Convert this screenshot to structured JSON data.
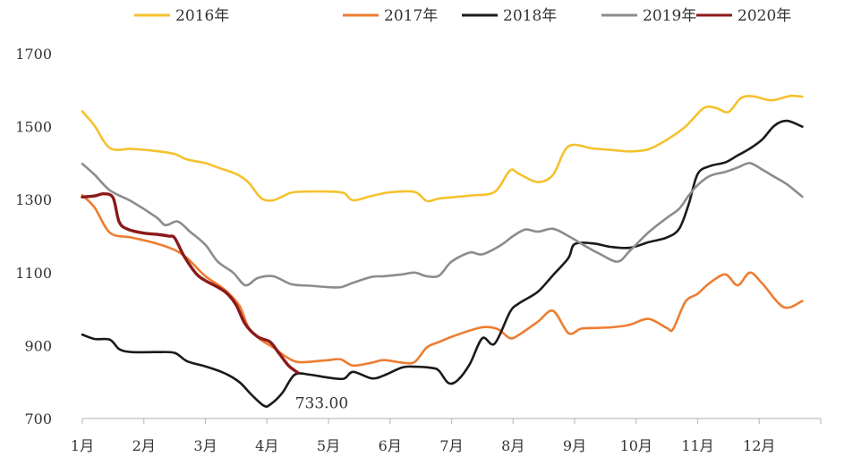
{
  "chart_data": {
    "type": "line",
    "title": "",
    "xlabel": "",
    "ylabel": "",
    "x_categories": [
      "1月",
      "2月",
      "3月",
      "4月",
      "5月",
      "6月",
      "7月",
      "8月",
      "9月",
      "10月",
      "11月",
      "12月"
    ],
    "ylim": [
      700,
      1700
    ],
    "yticks": [
      700,
      900,
      1100,
      1300,
      1500,
      1700
    ],
    "grid": false,
    "legend_position": "top",
    "series": [
      {
        "name": "2016年",
        "color": "#F5C12E",
        "points": [
          [
            0,
            1542
          ],
          [
            0.2,
            1502
          ],
          [
            0.45,
            1441
          ],
          [
            0.8,
            1439
          ],
          [
            1.2,
            1433
          ],
          [
            1.5,
            1425
          ],
          [
            1.7,
            1410
          ],
          [
            2.0,
            1400
          ],
          [
            2.2,
            1388
          ],
          [
            2.5,
            1370
          ],
          [
            2.7,
            1347
          ],
          [
            2.9,
            1305
          ],
          [
            3.1,
            1298
          ],
          [
            3.4,
            1319
          ],
          [
            3.7,
            1322
          ],
          [
            4.0,
            1322
          ],
          [
            4.25,
            1318
          ],
          [
            4.4,
            1298
          ],
          [
            4.7,
            1310
          ],
          [
            5.0,
            1320
          ],
          [
            5.4,
            1321
          ],
          [
            5.6,
            1296
          ],
          [
            5.8,
            1303
          ],
          [
            6.3,
            1311
          ],
          [
            6.7,
            1321
          ],
          [
            6.95,
            1380
          ],
          [
            7.1,
            1370
          ],
          [
            7.4,
            1348
          ],
          [
            7.65,
            1368
          ],
          [
            7.9,
            1446
          ],
          [
            8.3,
            1440
          ],
          [
            8.6,
            1436
          ],
          [
            8.9,
            1432
          ],
          [
            9.2,
            1438
          ],
          [
            9.5,
            1464
          ],
          [
            9.8,
            1500
          ],
          [
            10.1,
            1551
          ],
          [
            10.3,
            1551
          ],
          [
            10.5,
            1540
          ],
          [
            10.7,
            1578
          ],
          [
            10.9,
            1583
          ],
          [
            11.2,
            1572
          ],
          [
            11.5,
            1584
          ],
          [
            11.7,
            1582
          ]
        ]
      },
      {
        "name": "2017年",
        "color": "#ED7D31",
        "points": [
          [
            0,
            1312
          ],
          [
            0.2,
            1278
          ],
          [
            0.45,
            1209
          ],
          [
            0.8,
            1196
          ],
          [
            1.2,
            1180
          ],
          [
            1.5,
            1162
          ],
          [
            1.7,
            1140
          ],
          [
            2.0,
            1090
          ],
          [
            2.3,
            1055
          ],
          [
            2.55,
            1010
          ],
          [
            2.7,
            950
          ],
          [
            2.9,
            916
          ],
          [
            3.1,
            895
          ],
          [
            3.3,
            870
          ],
          [
            3.5,
            855
          ],
          [
            3.8,
            857
          ],
          [
            4.0,
            860
          ],
          [
            4.2,
            862
          ],
          [
            4.4,
            845
          ],
          [
            4.7,
            853
          ],
          [
            4.9,
            860
          ],
          [
            5.2,
            853
          ],
          [
            5.4,
            855
          ],
          [
            5.6,
            895
          ],
          [
            5.8,
            910
          ],
          [
            6.1,
            930
          ],
          [
            6.5,
            950
          ],
          [
            6.75,
            945
          ],
          [
            6.95,
            920
          ],
          [
            7.1,
            930
          ],
          [
            7.4,
            965
          ],
          [
            7.65,
            995
          ],
          [
            7.9,
            934
          ],
          [
            8.1,
            946
          ],
          [
            8.3,
            948
          ],
          [
            8.6,
            950
          ],
          [
            8.9,
            957
          ],
          [
            9.2,
            973
          ],
          [
            9.5,
            948
          ],
          [
            9.6,
            945
          ],
          [
            9.8,
            1020
          ],
          [
            10.0,
            1042
          ],
          [
            10.2,
            1072
          ],
          [
            10.45,
            1095
          ],
          [
            10.65,
            1065
          ],
          [
            10.85,
            1100
          ],
          [
            11.05,
            1070
          ],
          [
            11.4,
            1005
          ],
          [
            11.7,
            1022
          ]
        ]
      },
      {
        "name": "2018年",
        "color": "#1A1A1A",
        "points": [
          [
            0,
            930
          ],
          [
            0.2,
            918
          ],
          [
            0.45,
            916
          ],
          [
            0.6,
            890
          ],
          [
            0.8,
            882
          ],
          [
            1.2,
            882
          ],
          [
            1.5,
            880
          ],
          [
            1.7,
            857
          ],
          [
            2.0,
            843
          ],
          [
            2.3,
            825
          ],
          [
            2.55,
            800
          ],
          [
            2.75,
            765
          ],
          [
            2.95,
            735
          ],
          [
            3.05,
            738
          ],
          [
            3.25,
            770
          ],
          [
            3.45,
            820
          ],
          [
            3.7,
            820
          ],
          [
            4.0,
            812
          ],
          [
            4.25,
            809
          ],
          [
            4.4,
            828
          ],
          [
            4.7,
            810
          ],
          [
            4.9,
            818
          ],
          [
            5.2,
            840
          ],
          [
            5.4,
            842
          ],
          [
            5.7,
            838
          ],
          [
            5.8,
            830
          ],
          [
            5.95,
            797
          ],
          [
            6.1,
            805
          ],
          [
            6.3,
            850
          ],
          [
            6.5,
            920
          ],
          [
            6.7,
            905
          ],
          [
            6.95,
            992
          ],
          [
            7.1,
            1016
          ],
          [
            7.4,
            1047
          ],
          [
            7.65,
            1093
          ],
          [
            7.9,
            1140
          ],
          [
            8.0,
            1178
          ],
          [
            8.3,
            1180
          ],
          [
            8.6,
            1170
          ],
          [
            8.9,
            1168
          ],
          [
            9.2,
            1183
          ],
          [
            9.5,
            1196
          ],
          [
            9.7,
            1220
          ],
          [
            9.85,
            1285
          ],
          [
            10.0,
            1370
          ],
          [
            10.2,
            1392
          ],
          [
            10.45,
            1402
          ],
          [
            10.65,
            1421
          ],
          [
            10.85,
            1440
          ],
          [
            11.05,
            1465
          ],
          [
            11.25,
            1503
          ],
          [
            11.45,
            1516
          ],
          [
            11.7,
            1500
          ]
        ]
      },
      {
        "name": "2019年",
        "color": "#8C8C8C",
        "points": [
          [
            0,
            1398
          ],
          [
            0.2,
            1368
          ],
          [
            0.45,
            1325
          ],
          [
            0.8,
            1295
          ],
          [
            1.2,
            1252
          ],
          [
            1.35,
            1230
          ],
          [
            1.55,
            1240
          ],
          [
            1.75,
            1212
          ],
          [
            2.0,
            1176
          ],
          [
            2.2,
            1130
          ],
          [
            2.45,
            1100
          ],
          [
            2.65,
            1065
          ],
          [
            2.85,
            1085
          ],
          [
            3.1,
            1090
          ],
          [
            3.4,
            1068
          ],
          [
            3.7,
            1064
          ],
          [
            4.0,
            1060
          ],
          [
            4.2,
            1060
          ],
          [
            4.4,
            1072
          ],
          [
            4.7,
            1088
          ],
          [
            4.9,
            1090
          ],
          [
            5.2,
            1095
          ],
          [
            5.4,
            1100
          ],
          [
            5.6,
            1090
          ],
          [
            5.8,
            1092
          ],
          [
            6.0,
            1130
          ],
          [
            6.3,
            1155
          ],
          [
            6.5,
            1150
          ],
          [
            6.8,
            1175
          ],
          [
            7.0,
            1200
          ],
          [
            7.2,
            1218
          ],
          [
            7.4,
            1212
          ],
          [
            7.65,
            1220
          ],
          [
            7.9,
            1200
          ],
          [
            8.2,
            1170
          ],
          [
            8.4,
            1152
          ],
          [
            8.7,
            1130
          ],
          [
            8.9,
            1160
          ],
          [
            9.2,
            1210
          ],
          [
            9.5,
            1250
          ],
          [
            9.7,
            1275
          ],
          [
            9.85,
            1310
          ],
          [
            10.0,
            1340
          ],
          [
            10.2,
            1365
          ],
          [
            10.45,
            1376
          ],
          [
            10.65,
            1388
          ],
          [
            10.85,
            1400
          ],
          [
            11.05,
            1382
          ],
          [
            11.25,
            1362
          ],
          [
            11.45,
            1342
          ],
          [
            11.7,
            1308
          ]
        ]
      },
      {
        "name": "2020年",
        "color": "#8B1A1A",
        "points": [
          [
            0,
            1307
          ],
          [
            0.2,
            1310
          ],
          [
            0.35,
            1316
          ],
          [
            0.5,
            1305
          ],
          [
            0.6,
            1238
          ],
          [
            0.75,
            1218
          ],
          [
            1.0,
            1208
          ],
          [
            1.2,
            1205
          ],
          [
            1.4,
            1200
          ],
          [
            1.5,
            1195
          ],
          [
            1.65,
            1146
          ],
          [
            1.85,
            1097
          ],
          [
            2.0,
            1078
          ],
          [
            2.2,
            1060
          ],
          [
            2.35,
            1043
          ],
          [
            2.5,
            1011
          ],
          [
            2.65,
            958
          ],
          [
            2.85,
            924
          ],
          [
            3.05,
            910
          ],
          [
            3.2,
            878
          ],
          [
            3.35,
            845
          ],
          [
            3.5,
            826
          ]
        ]
      }
    ],
    "annotations": [
      {
        "text": "733.00",
        "x": 3.05,
        "y": 733
      }
    ]
  }
}
